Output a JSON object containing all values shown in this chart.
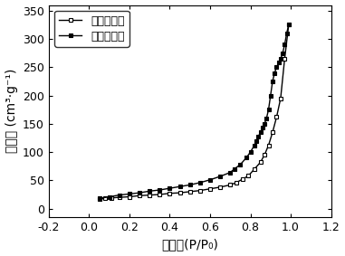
{
  "title": "",
  "xlabel": "分压点(P/P₀)",
  "ylabel": "吸附量 (cm³·g⁻¹)",
  "xlim": [
    -0.2,
    1.2
  ],
  "ylim": [
    -15,
    360
  ],
  "yticks": [
    0,
    50,
    100,
    150,
    200,
    250,
    300,
    350
  ],
  "xticks": [
    -0.2,
    0.0,
    0.2,
    0.4,
    0.6,
    0.8,
    1.0,
    1.2
  ],
  "adsorption_x": [
    0.05,
    0.08,
    0.11,
    0.15,
    0.2,
    0.25,
    0.3,
    0.35,
    0.4,
    0.45,
    0.5,
    0.55,
    0.6,
    0.65,
    0.7,
    0.73,
    0.76,
    0.79,
    0.82,
    0.85,
    0.87,
    0.89,
    0.91,
    0.93,
    0.95,
    0.97,
    0.99
  ],
  "adsorption_y": [
    17,
    18,
    19,
    20,
    21,
    23,
    24,
    25,
    27,
    28,
    30,
    32,
    35,
    38,
    42,
    46,
    52,
    58,
    70,
    82,
    95,
    112,
    135,
    162,
    195,
    265,
    325
  ],
  "desorption_x": [
    0.99,
    0.98,
    0.97,
    0.96,
    0.95,
    0.94,
    0.93,
    0.92,
    0.91,
    0.9,
    0.89,
    0.88,
    0.87,
    0.86,
    0.85,
    0.84,
    0.83,
    0.82,
    0.8,
    0.78,
    0.75,
    0.72,
    0.7,
    0.65,
    0.6,
    0.55,
    0.5,
    0.45,
    0.4,
    0.35,
    0.3,
    0.25,
    0.2,
    0.15,
    0.1,
    0.05
  ],
  "desorption_y": [
    325,
    310,
    290,
    275,
    265,
    258,
    250,
    240,
    225,
    200,
    175,
    160,
    150,
    143,
    135,
    128,
    120,
    112,
    100,
    90,
    78,
    70,
    64,
    57,
    51,
    46,
    42,
    39,
    36,
    33,
    31,
    28,
    26,
    24,
    21,
    18
  ],
  "adsorption_label": "吸附等温线",
  "desorption_label": "脱附等温线",
  "line_color": "black",
  "background_color": "white",
  "legend_fontsize": 9,
  "axis_fontsize": 10,
  "tick_fontsize": 9
}
